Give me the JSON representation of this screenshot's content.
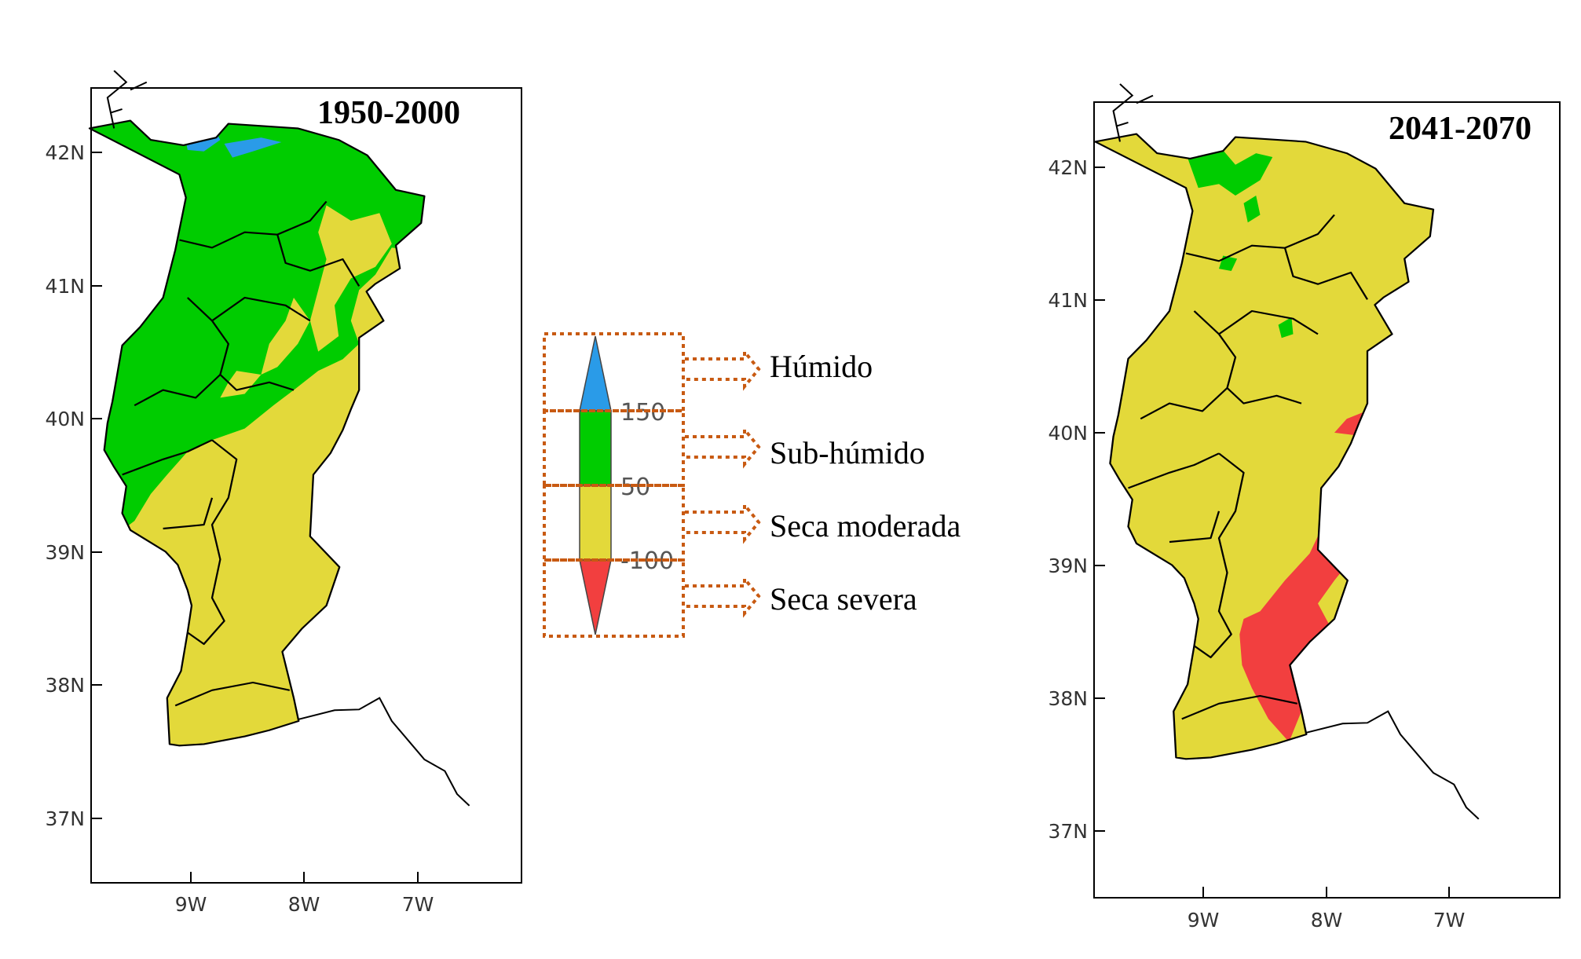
{
  "colors": {
    "humid": "#2a9be8",
    "subhumid": "#00cc00",
    "moderate": "#e3d93a",
    "severe": "#f23f3f",
    "connector": "#c85a12"
  },
  "panels": [
    {
      "title": "1950-2000",
      "lat_ticks": [
        "42N",
        "41N",
        "40N",
        "39N",
        "38N",
        "37N"
      ],
      "lon_ticks": [
        "9W",
        "8W",
        "7W"
      ]
    },
    {
      "title": "2041-2070",
      "lat_ticks": [
        "42N",
        "41N",
        "40N",
        "39N",
        "38N",
        "37N"
      ],
      "lon_ticks": [
        "9W",
        "8W",
        "7W"
      ]
    }
  ],
  "colorbar": {
    "thresholds": [
      "150",
      "50",
      "-100"
    ]
  },
  "legend": [
    {
      "label": "Húmido",
      "color_key": "humid"
    },
    {
      "label": "Sub-húmido",
      "color_key": "subhumid"
    },
    {
      "label": "Seca moderada",
      "color_key": "moderate"
    },
    {
      "label": "Seca severa",
      "color_key": "severe"
    }
  ]
}
